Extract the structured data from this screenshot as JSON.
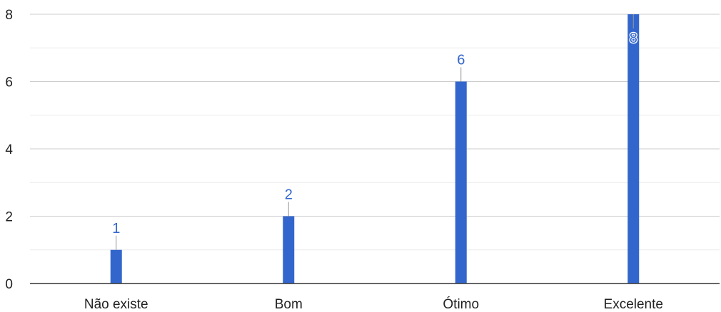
{
  "chart_data": {
    "type": "bar",
    "title": "",
    "xlabel": "",
    "ylabel": "",
    "categories": [
      "Não existe",
      "Bom",
      "Ótimo",
      "Excelente"
    ],
    "values": [
      1,
      2,
      6,
      8
    ],
    "data_labels": [
      "1",
      "2",
      "6",
      "8"
    ],
    "ylim": [
      0,
      8
    ],
    "yticks": [
      0,
      2,
      4,
      6,
      8
    ],
    "ytick_labels": [
      "0",
      "2",
      "4",
      "6",
      "8"
    ],
    "minor_gridlines": [
      1,
      3,
      5,
      7
    ],
    "grid": true,
    "legend": "none",
    "colors": {
      "bar": "#3366cc",
      "data_label": "#3366cc",
      "gridline": "#cccccc",
      "minor_gridline": "#ebebeb",
      "baseline": "#333333",
      "leader_line": "#999999"
    }
  }
}
